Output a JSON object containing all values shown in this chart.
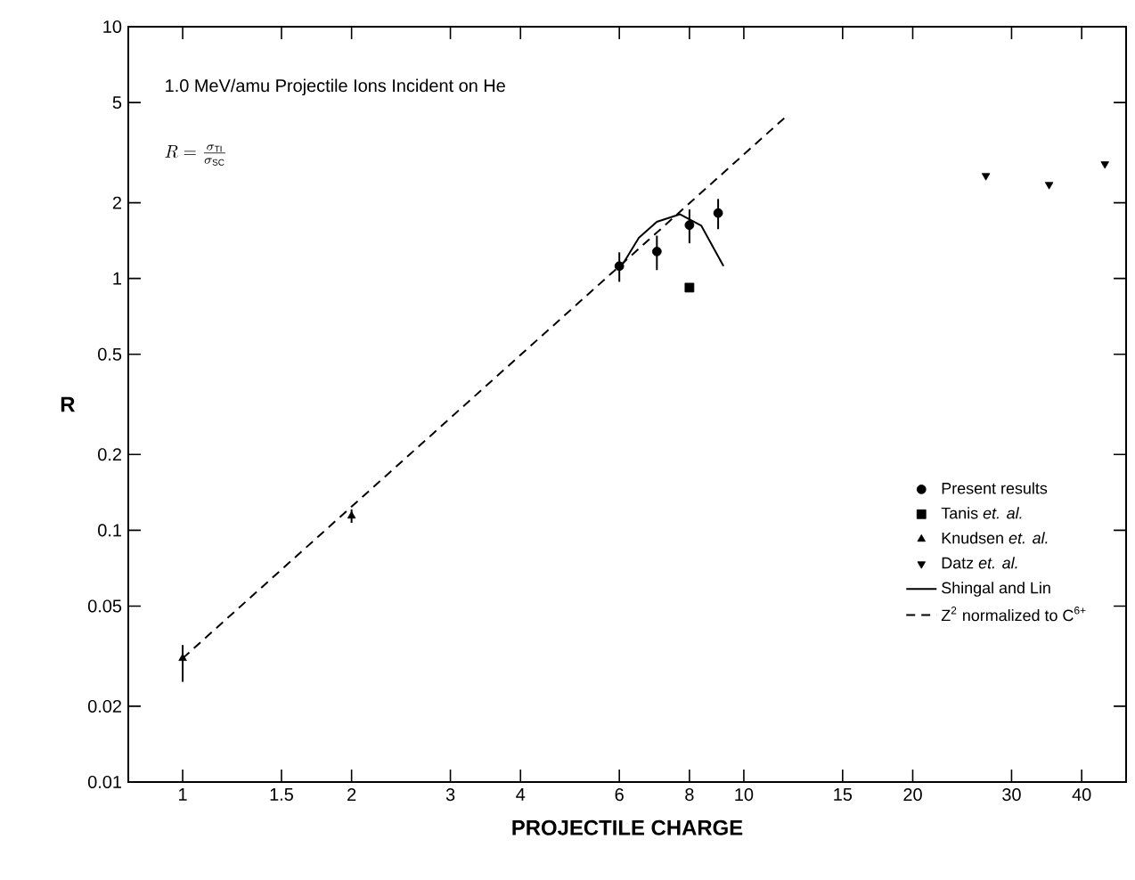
{
  "chart_data": {
    "type": "scatter",
    "log": "xy",
    "xlabel": "PROJECTILE CHARGE",
    "ylabel": "R",
    "xlim": [
      0.8,
      48
    ],
    "ylim": [
      0.01,
      10
    ],
    "xticks": [
      1,
      1.5,
      2,
      3,
      4,
      6,
      8,
      10,
      15,
      20,
      30,
      40
    ],
    "yticks": [
      0.01,
      0.02,
      0.05,
      0.1,
      0.2,
      0.5,
      1,
      2,
      5,
      10
    ],
    "legend": "right",
    "annotations": [
      "1.0 MeV/amu Projectile Ions Incident on He",
      "R=\\frac{\\sigma_{\\mathrm{TI}}}{\\sigma_{\\mathrm{SC}}}"
    ],
    "series": [
      {
        "name": "Present results",
        "marker": "circle",
        "color": "#000000",
        "x": [
          6,
          7,
          8,
          9
        ],
        "values": [
          1.12,
          1.28,
          1.63,
          1.82
        ],
        "errors": [
          0.15,
          0.2,
          0.25,
          0.25
        ]
      },
      {
        "name": "Tanis *et. al.*",
        "marker": "square",
        "color": "#000000",
        "x": [
          8
        ],
        "values": [
          0.92
        ]
      },
      {
        "name": "Knudsen *et. al.*",
        "marker": "triangle",
        "color": "#000000",
        "x": [
          1,
          2
        ],
        "values": [
          0.031,
          0.114
        ],
        "errors": [
          [
            0.025,
            0.035
          ],
          0.007
        ]
      },
      {
        "name": "Datz *et. al.*",
        "marker": "triangle-down",
        "color": "#000000",
        "x": [
          27,
          35,
          44
        ],
        "values": [
          2.56,
          2.36,
          2.85
        ]
      },
      {
        "name": "Shingal and Lin",
        "type": "line",
        "line_style": "solid",
        "color": "#000000",
        "x": [
          6.1,
          6.5,
          7,
          7.7,
          8.4,
          9.2
        ],
        "values": [
          1.15,
          1.45,
          1.68,
          1.8,
          1.62,
          1.12
        ]
      },
      {
        "name": "Z$^{2}$ normalized to C$^{6+}$",
        "type": "line",
        "line_style": "dashed",
        "color": "#000000",
        "x": [
          1,
          12
        ],
        "values": [
          0.031,
          4.48
        ]
      }
    ]
  }
}
